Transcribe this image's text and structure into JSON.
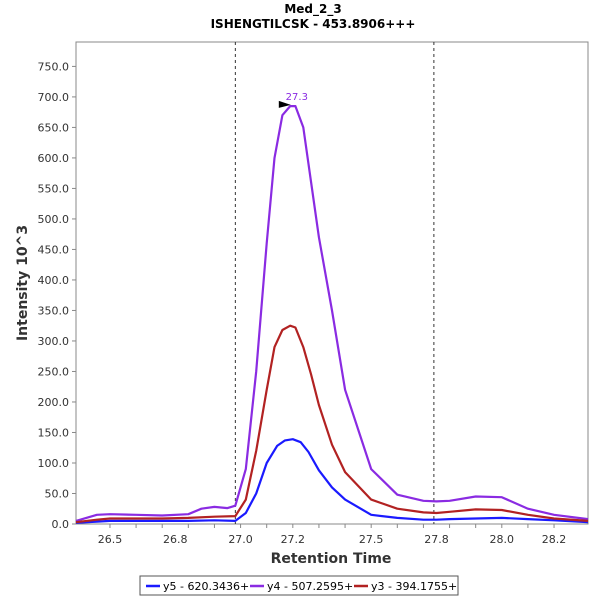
{
  "chart_data": {
    "type": "line",
    "title": "Med_2_3",
    "subtitle": "ISHENGTILCSK - 453.8906+++",
    "xlabel": "Retention Time",
    "ylabel": "Intensity 10^3",
    "xlim": [
      26.37,
      28.33
    ],
    "ylim": [
      0,
      790
    ],
    "x_ticks": [
      "26.5",
      "26.6",
      "26.7",
      "26.8",
      "26.9",
      "27.0",
      "27.1",
      "27.2",
      "27.3",
      "27.4",
      "27.5",
      "27.6",
      "27.7",
      "27.8",
      "27.9",
      "28.0",
      "28.1",
      "28.2"
    ],
    "x_tick_labels": [
      "26.5",
      "26.8",
      "27.0",
      "27.2",
      "27.5",
      "27.8",
      "28.0",
      "28.2"
    ],
    "x_tick_label_values": [
      26.5,
      26.75,
      27.0,
      27.2,
      27.5,
      27.75,
      28.0,
      28.2
    ],
    "y_tick_labels": [
      "0.0",
      "50.0",
      "100.0",
      "150.0",
      "200.0",
      "250.0",
      "300.0",
      "350.0",
      "400.0",
      "450.0",
      "500.0",
      "550.0",
      "600.0",
      "650.0",
      "700.0",
      "750.0"
    ],
    "y_tick_values": [
      0,
      50,
      100,
      150,
      200,
      250,
      300,
      350,
      400,
      450,
      500,
      550,
      600,
      650,
      700,
      750
    ],
    "integration_boundaries": [
      26.98,
      27.74
    ],
    "peak_annotation": {
      "label": "27.3",
      "x": 27.2,
      "y": 687
    },
    "series": [
      {
        "name": "y5 - 620.3436+",
        "color": "#1a1aff",
        "x": [
          26.37,
          26.45,
          26.5,
          26.6,
          26.7,
          26.8,
          26.9,
          26.98,
          27.02,
          27.06,
          27.1,
          27.14,
          27.17,
          27.2,
          27.23,
          27.26,
          27.3,
          27.35,
          27.4,
          27.5,
          27.6,
          27.7,
          27.75,
          27.8,
          27.9,
          28.0,
          28.1,
          28.2,
          28.33
        ],
        "y": [
          2,
          4,
          5,
          5,
          5,
          5,
          6,
          5,
          18,
          50,
          100,
          128,
          137,
          139,
          134,
          118,
          88,
          60,
          40,
          15,
          10,
          7,
          7,
          8,
          9,
          10,
          8,
          6,
          3
        ]
      },
      {
        "name": "y4 - 507.2595+",
        "color": "#8a2be2",
        "x": [
          26.37,
          26.45,
          26.5,
          26.6,
          26.7,
          26.8,
          26.85,
          26.9,
          26.95,
          26.98,
          27.02,
          27.06,
          27.1,
          27.13,
          27.16,
          27.19,
          27.21,
          27.24,
          27.27,
          27.3,
          27.35,
          27.4,
          27.5,
          27.6,
          27.7,
          27.75,
          27.8,
          27.9,
          28.0,
          28.1,
          28.2,
          28.33
        ],
        "y": [
          5,
          15,
          16,
          15,
          14,
          16,
          25,
          28,
          26,
          30,
          90,
          250,
          460,
          600,
          670,
          685,
          685,
          650,
          560,
          470,
          350,
          220,
          90,
          48,
          38,
          37,
          38,
          45,
          44,
          25,
          15,
          8
        ]
      },
      {
        "name": "y3 - 394.1755+",
        "color": "#b22222",
        "x": [
          26.37,
          26.45,
          26.5,
          26.6,
          26.7,
          26.8,
          26.9,
          26.98,
          27.02,
          27.06,
          27.1,
          27.13,
          27.16,
          27.19,
          27.21,
          27.24,
          27.27,
          27.3,
          27.35,
          27.4,
          27.5,
          27.6,
          27.7,
          27.75,
          27.8,
          27.9,
          28.0,
          28.1,
          28.2,
          28.33
        ],
        "y": [
          3,
          7,
          9,
          9,
          9,
          10,
          12,
          13,
          40,
          120,
          220,
          290,
          318,
          325,
          322,
          290,
          245,
          195,
          130,
          85,
          40,
          25,
          19,
          18,
          20,
          24,
          23,
          15,
          9,
          5
        ]
      }
    ],
    "legend_position": "bottom"
  }
}
